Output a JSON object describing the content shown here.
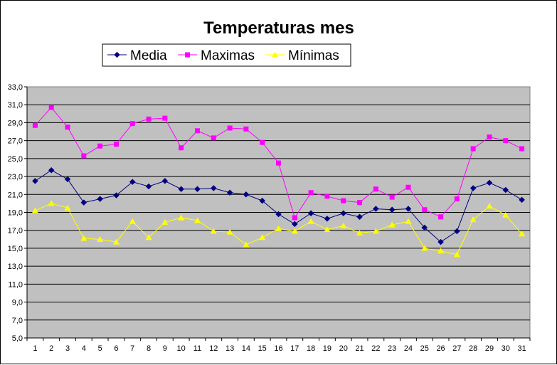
{
  "chart_data": {
    "type": "line",
    "title": "Temperaturas mes",
    "xlabel": "",
    "ylabel": "",
    "categories": [
      "1",
      "2",
      "3",
      "4",
      "5",
      "6",
      "7",
      "8",
      "9",
      "10",
      "11",
      "12",
      "13",
      "14",
      "15",
      "16",
      "17",
      "18",
      "19",
      "20",
      "21",
      "22",
      "23",
      "24",
      "25",
      "26",
      "27",
      "28",
      "29",
      "30",
      "31"
    ],
    "ylim": [
      5,
      33
    ],
    "yticks": [
      "33,0",
      "31,0",
      "29,0",
      "27,0",
      "25,0",
      "23,0",
      "21,0",
      "19,0",
      "17,0",
      "15,0",
      "13,0",
      "11,0",
      "9,0",
      "7,0",
      "5,0"
    ],
    "grid": true,
    "legend_position": "top",
    "plot_background": "#c0c0c0",
    "series": [
      {
        "name": "Media",
        "color": "#000080",
        "marker": "diamond",
        "values": [
          22.5,
          23.7,
          22.7,
          20.1,
          20.5,
          20.9,
          22.4,
          21.9,
          22.5,
          21.6,
          21.6,
          21.7,
          21.2,
          21.0,
          20.3,
          18.8,
          17.7,
          18.9,
          18.3,
          18.9,
          18.5,
          19.4,
          19.3,
          19.4,
          17.3,
          15.7,
          16.9,
          21.7,
          22.3,
          21.5,
          20.4
        ]
      },
      {
        "name": "Maximas",
        "color": "#ff00ff",
        "marker": "square",
        "values": [
          28.7,
          30.7,
          28.5,
          25.3,
          26.4,
          26.6,
          28.9,
          29.4,
          29.5,
          26.2,
          28.1,
          27.3,
          28.4,
          28.3,
          26.8,
          24.5,
          18.4,
          21.2,
          20.8,
          20.3,
          20.1,
          21.6,
          20.7,
          21.8,
          19.3,
          18.5,
          20.5,
          26.1,
          27.4,
          27.0,
          26.1
        ]
      },
      {
        "name": "Mínimas",
        "color": "#ffff00",
        "marker": "triangle",
        "values": [
          19.2,
          20.0,
          19.5,
          16.1,
          16.0,
          15.7,
          18.0,
          16.2,
          17.9,
          18.4,
          18.1,
          16.9,
          16.8,
          15.4,
          16.2,
          17.2,
          16.9,
          18.0,
          17.1,
          17.5,
          16.7,
          16.9,
          17.6,
          18.0,
          15.0,
          14.7,
          14.3,
          18.2,
          19.7,
          18.7,
          16.6
        ]
      }
    ]
  }
}
